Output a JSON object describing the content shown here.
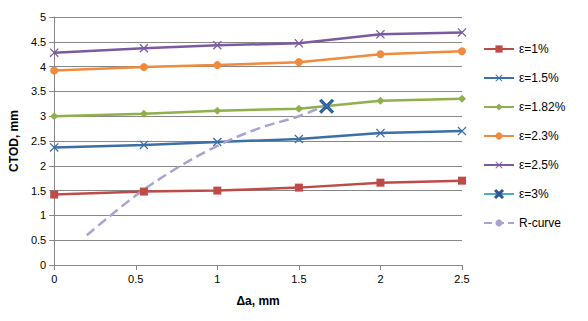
{
  "chart_data": {
    "type": "line",
    "x_label": "Δa, mm",
    "y_label": "CTOD, mm",
    "xlim": [
      0,
      2.5
    ],
    "xticks": [
      0,
      0.5,
      1,
      1.5,
      2,
      2.5
    ],
    "ylim": [
      0,
      5
    ],
    "yticks": [
      0,
      0.5,
      1,
      1.5,
      2,
      2.5,
      3,
      3.5,
      4,
      4.5,
      5
    ],
    "grid": true,
    "legend": "right",
    "series": [
      {
        "name": "ε=1%",
        "color": "#be4b48",
        "marker": "square",
        "line_style": "solid",
        "x": [
          0,
          0.55,
          1,
          1.5,
          2,
          2.5
        ],
        "values": [
          1.42,
          1.48,
          1.5,
          1.56,
          1.66,
          1.7
        ]
      },
      {
        "name": "ε=1.5%",
        "color": "#3c6fa6",
        "marker": "x",
        "line_style": "solid",
        "x": [
          0,
          0.55,
          1,
          1.5,
          2,
          2.5
        ],
        "values": [
          2.37,
          2.42,
          2.48,
          2.54,
          2.66,
          2.7
        ]
      },
      {
        "name": "ε=1.82%",
        "color": "#8fb04a",
        "marker": "diamond",
        "line_style": "solid",
        "x": [
          0,
          0.55,
          1,
          1.5,
          2,
          2.5
        ],
        "values": [
          3.0,
          3.05,
          3.11,
          3.15,
          3.31,
          3.35
        ]
      },
      {
        "name": "ε=2.3%",
        "color": "#f08a3c",
        "marker": "circle",
        "line_style": "solid",
        "x": [
          0,
          0.55,
          1,
          1.5,
          2,
          2.5
        ],
        "values": [
          3.92,
          3.99,
          4.03,
          4.09,
          4.25,
          4.31
        ]
      },
      {
        "name": "ε=2.5%",
        "color": "#7a5aa0",
        "marker": "x",
        "line_style": "solid",
        "x": [
          0,
          0.55,
          1,
          1.5,
          2,
          2.5
        ],
        "values": [
          4.28,
          4.37,
          4.43,
          4.47,
          4.65,
          4.69
        ]
      },
      {
        "name": "ε=3%",
        "color": "#4bacc6",
        "marker": "x",
        "line_style": "solid",
        "x": [
          1.67
        ],
        "values": [
          3.2
        ]
      },
      {
        "name": "R-curve",
        "color": "#a9a3d4",
        "marker": "none",
        "line_style": "dashed",
        "x": [
          0.2,
          0.5,
          0.75,
          1,
          1.25,
          1.5,
          1.65
        ],
        "values": [
          0.6,
          1.4,
          1.95,
          2.4,
          2.75,
          3.0,
          3.2
        ]
      }
    ]
  }
}
